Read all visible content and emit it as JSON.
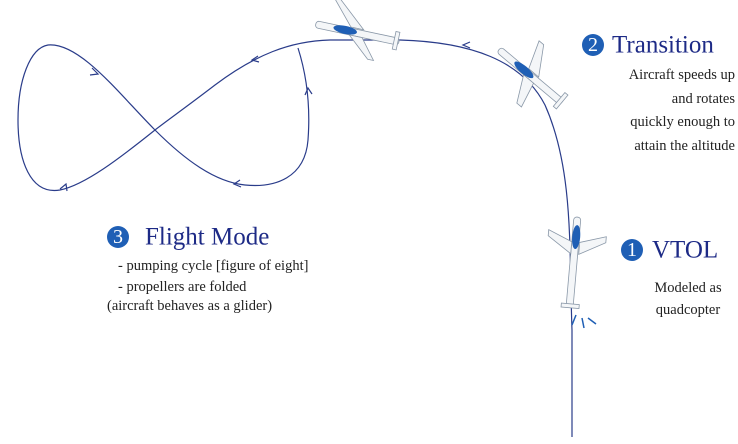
{
  "sections": [
    {
      "number": "1",
      "title": "VTOL",
      "lines": [
        "Modeled as",
        "quadcopter"
      ]
    },
    {
      "number": "2",
      "title": "Transition",
      "lines": [
        "Aircraft speeds up",
        "and rotates",
        "quickly enough to",
        "attain the altitude"
      ]
    },
    {
      "number": "3",
      "title": "Flight Mode",
      "lines": [
        "- pumping cycle [figure of eight]",
        "- propellers are folded",
        "(aircraft behaves as a glider)"
      ]
    }
  ]
}
